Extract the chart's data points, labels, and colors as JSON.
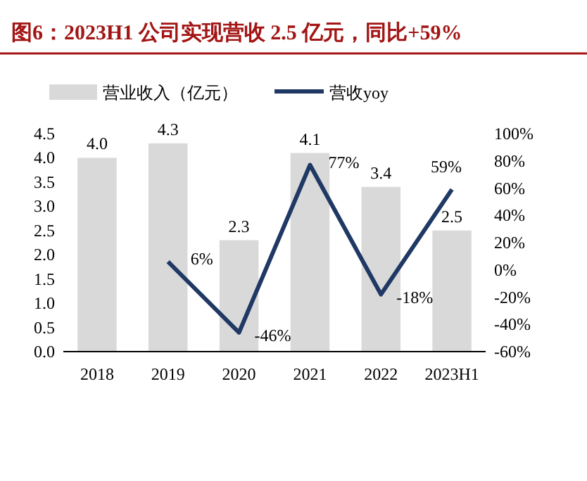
{
  "chart_data": {
    "type": "bar",
    "title": "图6：2023H1 公司实现营收 2.5 亿元，同比+59%",
    "categories": [
      "2018",
      "2019",
      "2020",
      "2021",
      "2022",
      "2023H1"
    ],
    "series": [
      {
        "name": "营业收入（亿元）",
        "color": "#d9d9d9",
        "values": [
          4.0,
          4.3,
          2.3,
          4.1,
          3.4,
          2.5
        ],
        "value_labels": [
          "4.0",
          "4.3",
          "2.3",
          "4.1",
          "3.4",
          "2.5"
        ]
      },
      {
        "name": "营收yoy",
        "type": "line",
        "axis": "y2",
        "color": "#1f3864",
        "values": [
          null,
          6,
          -46,
          77,
          -18,
          59
        ],
        "value_labels": [
          null,
          "6%",
          "-46%",
          "77%",
          "-18%",
          "59%"
        ]
      }
    ],
    "ylim": [
      0,
      4.5
    ],
    "yticks": [
      {
        "value": 0,
        "label": "0.0"
      },
      {
        "value": 0.5,
        "label": "0.5"
      },
      {
        "value": 1,
        "label": "1.0"
      },
      {
        "value": 1.5,
        "label": "1.5"
      },
      {
        "value": 2,
        "label": "2.0"
      },
      {
        "value": 2.5,
        "label": "2.5"
      },
      {
        "value": 3,
        "label": "3.0"
      },
      {
        "value": 3.5,
        "label": "3.5"
      },
      {
        "value": 4,
        "label": "4.0"
      },
      {
        "value": 4.5,
        "label": "4.5"
      }
    ],
    "y2lim": [
      -60,
      100
    ],
    "y2ticks": [
      {
        "value": -60,
        "label": "-60%"
      },
      {
        "value": -40,
        "label": "-40%"
      },
      {
        "value": -20,
        "label": "-20%"
      },
      {
        "value": 0,
        "label": "0%"
      },
      {
        "value": 20,
        "label": "20%"
      },
      {
        "value": 40,
        "label": "40%"
      },
      {
        "value": 60,
        "label": "60%"
      },
      {
        "value": 80,
        "label": "80%"
      },
      {
        "value": 100,
        "label": "100%"
      }
    ],
    "legend": "top",
    "grid": false,
    "marker": "none",
    "line_style": "solid"
  }
}
